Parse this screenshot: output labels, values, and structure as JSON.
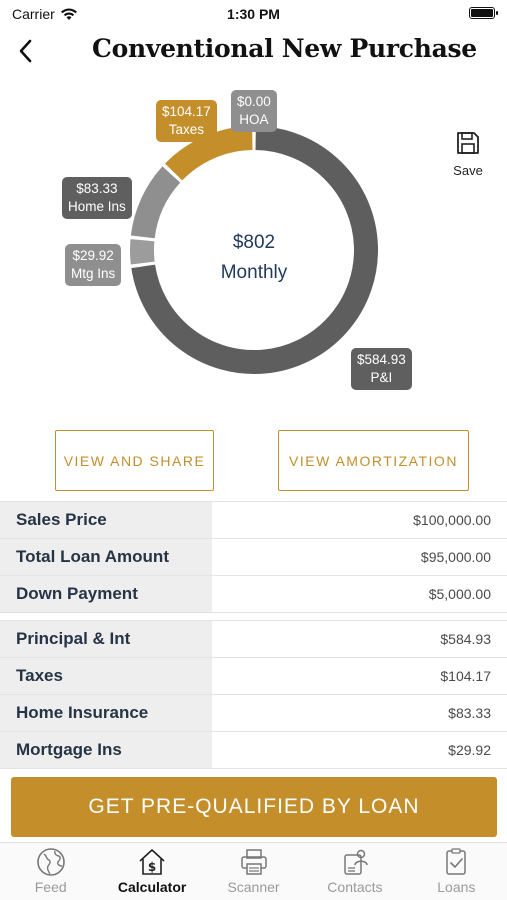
{
  "status": {
    "carrier": "Carrier",
    "time": "1:30 PM"
  },
  "header": {
    "title": "Conventional New Purchase"
  },
  "save": {
    "label": "Save"
  },
  "chart_center": {
    "amount": "$802",
    "sub": "Monthly"
  },
  "chart_data": {
    "type": "pie",
    "series": [
      {
        "amount": "$0.00",
        "label": "HOA",
        "value": 0.0,
        "color": "#7a7a7a"
      },
      {
        "amount": "$104.17",
        "label": "Taxes",
        "value": 104.17,
        "color": "#c48f2b"
      },
      {
        "amount": "$83.33",
        "label": "Home Ins",
        "value": 83.33,
        "color": "#8f8f8f"
      },
      {
        "amount": "$29.92",
        "label": "Mtg Ins",
        "value": 29.92,
        "color": "#9c9c9c"
      },
      {
        "amount": "$584.93",
        "label": "P&I",
        "value": 584.93,
        "color": "#5e5e5e"
      }
    ]
  },
  "buttons": {
    "view_share": "VIEW AND SHARE",
    "view_amort": "VIEW AMORTIZATION"
  },
  "loan_table": [
    {
      "label": "Sales Price",
      "value": "$100,000.00"
    },
    {
      "label": "Total Loan Amount",
      "value": "$95,000.00"
    },
    {
      "label": "Down Payment",
      "value": "$5,000.00"
    }
  ],
  "payment_table": [
    {
      "label": "Principal & Int",
      "value": "$584.93"
    },
    {
      "label": "Taxes",
      "value": "$104.17"
    },
    {
      "label": "Home Insurance",
      "value": "$83.33"
    },
    {
      "label": "Mortgage Ins",
      "value": "$29.92"
    }
  ],
  "cta": {
    "label": "GET PRE-QUALIFIED BY LOAN"
  },
  "tabs": [
    {
      "label": "Feed",
      "icon": "globe-icon",
      "active": false
    },
    {
      "label": "Calculator",
      "icon": "calculator-house-icon",
      "active": true
    },
    {
      "label": "Scanner",
      "icon": "printer-icon",
      "active": false
    },
    {
      "label": "Contacts",
      "icon": "contacts-icon",
      "active": false
    },
    {
      "label": "Loans",
      "icon": "clipboard-check-icon",
      "active": false
    }
  ],
  "colors": {
    "accent": "#c48f2b",
    "dark_segment": "#5e5e5e",
    "label_text": "#263445"
  }
}
